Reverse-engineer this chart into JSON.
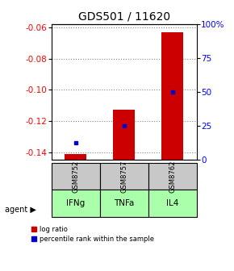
{
  "title": "GDS501 / 11620",
  "samples": [
    "GSM8752",
    "GSM8757",
    "GSM8762"
  ],
  "agents": [
    "IFNg",
    "TNFa",
    "IL4"
  ],
  "log_ratios": [
    -0.141,
    -0.113,
    -0.063
  ],
  "percentile_ranks": [
    12.5,
    25.0,
    50.0
  ],
  "ylim_left": [
    -0.145,
    -0.058
  ],
  "yticks_left": [
    -0.14,
    -0.12,
    -0.1,
    -0.08,
    -0.06
  ],
  "yticks_right": [
    0,
    25,
    50,
    75,
    100
  ],
  "ylim_right": [
    0,
    100
  ],
  "bar_color": "#cc0000",
  "dot_color": "#0000cc",
  "sample_bg": "#c8c8c8",
  "agent_bg": "#aaffaa",
  "grid_color": "#888888",
  "title_fontsize": 10,
  "tick_fontsize": 7.5,
  "bar_width": 0.45,
  "legend_items": [
    "log ratio",
    "percentile rank within the sample"
  ]
}
